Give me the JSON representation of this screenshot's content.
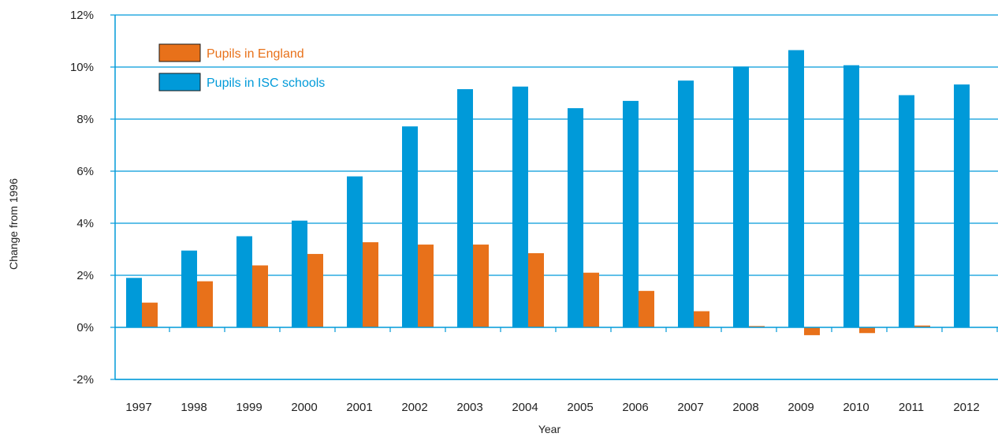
{
  "chart_data": {
    "type": "bar",
    "title": "",
    "xlabel": "Year",
    "ylabel": "Change from 1996",
    "categories": [
      "1997",
      "1998",
      "1999",
      "2000",
      "2001",
      "2002",
      "2003",
      "2004",
      "2005",
      "2006",
      "2007",
      "2008",
      "2009",
      "2010",
      "2011",
      "2012"
    ],
    "series": [
      {
        "name": "Pupils in ISC schools",
        "color": "#009ad9",
        "values": [
          1.9,
          2.95,
          3.5,
          4.1,
          5.8,
          7.72,
          9.15,
          9.25,
          8.42,
          8.7,
          9.48,
          10.02,
          10.65,
          10.07,
          8.92,
          9.33
        ]
      },
      {
        "name": "Pupils in England",
        "color": "#e8711a",
        "values": [
          0.95,
          1.77,
          2.38,
          2.82,
          3.27,
          3.18,
          3.18,
          2.85,
          2.1,
          1.4,
          0.62,
          0.05,
          -0.3,
          -0.22,
          0.07,
          0.0
        ]
      }
    ],
    "ylim": [
      -2,
      12
    ],
    "yticks": [
      -2,
      0,
      2,
      4,
      6,
      8,
      10,
      12
    ],
    "ytick_labels": [
      "-2%",
      "0%",
      "2%",
      "4%",
      "6%",
      "8%",
      "10%",
      "12%"
    ],
    "grid": true,
    "legend_position": "top-left",
    "colors": {
      "axis": "#009ad9",
      "grid": "#009ad9",
      "text": "#222222"
    }
  }
}
